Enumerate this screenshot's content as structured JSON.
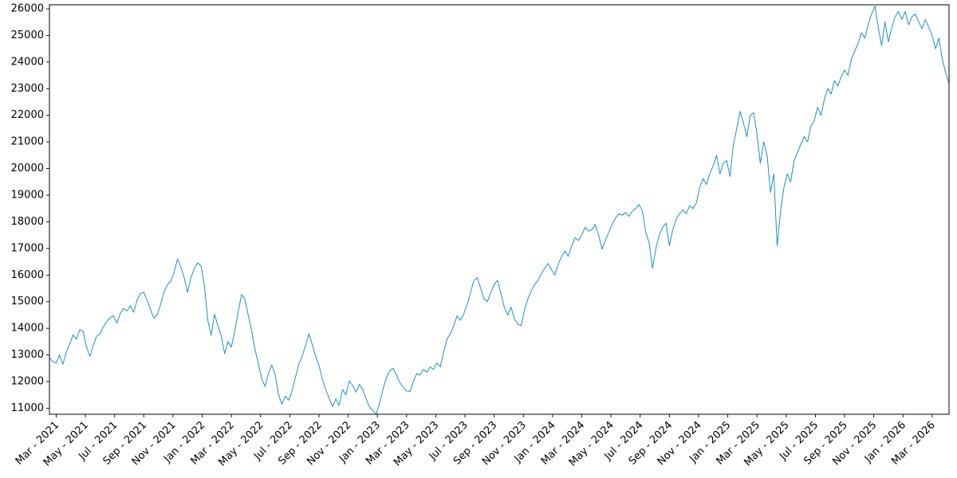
{
  "figure": {
    "background_color": "#ffffff",
    "title": ""
  },
  "chart_data": {
    "type": "line",
    "title": "",
    "xlabel": "",
    "ylabel": "",
    "legend": "none",
    "grid": false,
    "line_color": "#1e8fce",
    "axis_color": "#000000",
    "frequency": "weekly",
    "x_start_label": "Mar - 2021",
    "x_end_label": "Mar - 2026",
    "ylim": [
      10772,
      26150
    ],
    "y_ticks": [
      11000,
      12000,
      13000,
      14000,
      15000,
      16000,
      17000,
      18000,
      19000,
      20000,
      21000,
      22000,
      23000,
      24000,
      25000,
      26000
    ],
    "x_tick_labels": [
      "Mar - 2021",
      "May - 2021",
      "Jul - 2021",
      "Sep - 2021",
      "Nov - 2021",
      "Jan - 2022",
      "Mar - 2022",
      "May - 2022",
      "Jul - 2022",
      "Sep - 2022",
      "Nov - 2022",
      "Jan - 2023",
      "Mar - 2023",
      "May - 2023",
      "Jul - 2023",
      "Sep - 2023",
      "Nov - 2023",
      "Jan - 2024",
      "Mar - 2024",
      "May - 2024",
      "Jul - 2024",
      "Sep - 2024",
      "Nov - 2024",
      "Jan - 2025",
      "Mar - 2025",
      "May - 2025",
      "Jul - 2025",
      "Sep - 2025",
      "Nov - 2025",
      "Jan - 2026",
      "Mar - 2026"
    ],
    "x_tick_lead_weeks": 2,
    "x_tick_weeks_per_month": 4.3333,
    "values": [
      12900,
      12750,
      12700,
      13000,
      12650,
      13100,
      13400,
      13750,
      13600,
      13950,
      13880,
      13300,
      12940,
      13350,
      13700,
      13800,
      14050,
      14250,
      14400,
      14470,
      14200,
      14550,
      14750,
      14650,
      14850,
      14600,
      15050,
      15300,
      15350,
      15050,
      14700,
      14380,
      14500,
      14900,
      15350,
      15650,
      15760,
      16100,
      16600,
      16300,
      15900,
      15350,
      15900,
      16250,
      16450,
      16350,
      15600,
      14300,
      13735,
      14530,
      14100,
      13700,
      13050,
      13500,
      13300,
      13900,
      14600,
      15265,
      15100,
      14500,
      13900,
      13210,
      12700,
      12100,
      11820,
      12300,
      12620,
      12250,
      11500,
      11150,
      11450,
      11300,
      11650,
      12150,
      12650,
      12950,
      13350,
      13790,
      13400,
      12950,
      12600,
      12100,
      11700,
      11380,
      11050,
      11350,
      11100,
      11700,
      11500,
      12030,
      11850,
      11600,
      11900,
      11700,
      11350,
      11050,
      10900,
      10780,
      11200,
      11700,
      12150,
      12400,
      12500,
      12250,
      11950,
      11800,
      11650,
      11620,
      12000,
      12300,
      12250,
      12450,
      12350,
      12550,
      12450,
      12700,
      12550,
      13100,
      13590,
      13800,
      14100,
      14470,
      14300,
      14550,
      14900,
      15350,
      15800,
      15900,
      15500,
      15100,
      15000,
      15350,
      15650,
      15800,
      15300,
      14800,
      14500,
      14800,
      14350,
      14150,
      14100,
      14700,
      15100,
      15400,
      15650,
      15800,
      16050,
      16250,
      16440,
      16200,
      16000,
      16400,
      16700,
      16900,
      16700,
      17100,
      17400,
      17300,
      17500,
      17800,
      17650,
      17700,
      17900,
      17500,
      16970,
      17300,
      17600,
      17900,
      18150,
      18300,
      18250,
      18350,
      18200,
      18400,
      18500,
      18650,
      18400,
      17600,
      17200,
      16250,
      17000,
      17500,
      17800,
      17950,
      17100,
      17700,
      18100,
      18300,
      18450,
      18300,
      18600,
      18500,
      18700,
      19300,
      19620,
      19400,
      19800,
      20100,
      20500,
      19800,
      20200,
      20300,
      19700,
      20900,
      21500,
      22150,
      21700,
      21200,
      22000,
      22100,
      21300,
      20200,
      21000,
      20500,
      19100,
      19800,
      17100,
      18400,
      19300,
      19800,
      19500,
      20300,
      20600,
      20900,
      21200,
      21000,
      21600,
      21800,
      22300,
      22000,
      22600,
      23000,
      22800,
      23300,
      23100,
      23440,
      23700,
      23500,
      24100,
      24400,
      24700,
      25100,
      24900,
      25400,
      25800,
      26100,
      25300,
      24620,
      25500,
      24760,
      25300,
      25700,
      25900,
      25600,
      25900,
      25400,
      25700,
      25800,
      25500,
      25250,
      25600,
      25300,
      25000,
      24500,
      24900,
      24100,
      23600,
      23200
    ]
  }
}
